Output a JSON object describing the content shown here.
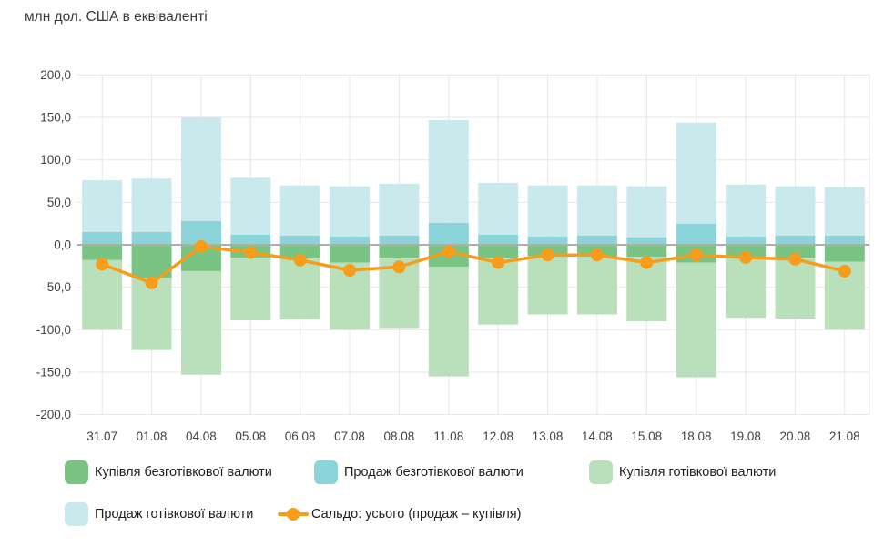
{
  "title": "млн дол. США в еквіваленті",
  "colors": {
    "buy_noncash": "#79c383",
    "sell_noncash": "#8ad4da",
    "buy_cash": "#b9dfbb",
    "sell_cash": "#c9e9ec",
    "saldo": "#f89c1b",
    "grid": "#e6e6e6",
    "zero_line": "#aeaeae",
    "axis_text": "#424242",
    "legend_text": "#1f1f1f"
  },
  "chart_data": {
    "type": "bar",
    "subtype": "stacked-bars-with-line",
    "title": "млн дол. США в еквіваленті",
    "categories": [
      "31.07",
      "01.08",
      "04.08",
      "05.08",
      "06.08",
      "07.08",
      "08.08",
      "11.08",
      "12.08",
      "13.08",
      "14.08",
      "15.08",
      "18.08",
      "19.08",
      "20.08",
      "21.08"
    ],
    "series": [
      {
        "name": "Купівля безготівкової валюти",
        "type": "bar",
        "stack": "down",
        "color_key": "buy_noncash",
        "values": [
          -18,
          -39,
          -31,
          -15,
          -15,
          -21,
          -15,
          -26,
          -15,
          -13,
          -14,
          -14,
          -21,
          -15,
          -15,
          -20
        ]
      },
      {
        "name": "Продаж безготівкової валюти",
        "type": "bar",
        "stack": "up",
        "color_key": "sell_noncash",
        "values": [
          15,
          15,
          28,
          12,
          11,
          10,
          11,
          26,
          12,
          10,
          11,
          9,
          25,
          10,
          11,
          11
        ]
      },
      {
        "name": "Купівля готівкової валюти",
        "type": "bar",
        "stack": "down",
        "color_key": "buy_cash",
        "values": [
          -82,
          -85,
          -122,
          -74,
          -73,
          -79,
          -83,
          -129,
          -79,
          -69,
          -68,
          -76,
          -135,
          -71,
          -72,
          -80
        ]
      },
      {
        "name": "Продаж готівкової валюти",
        "type": "bar",
        "stack": "up",
        "color_key": "sell_cash",
        "values": [
          61,
          63,
          122,
          67,
          59,
          59,
          61,
          121,
          61,
          60,
          59,
          60,
          119,
          61,
          58,
          57
        ]
      },
      {
        "name": "Сальдо: усього (продаж – купівля)",
        "type": "line",
        "color_key": "saldo",
        "values": [
          -23,
          -45,
          -2,
          -9,
          -18,
          -30,
          -26,
          -8,
          -21,
          -12,
          -12,
          -21,
          -12,
          -15,
          -17,
          -31
        ]
      }
    ],
    "ylim": [
      -200,
      200
    ],
    "ytick_step": 50,
    "ytick_labels": [
      "200,0",
      "150,0",
      "100,0",
      "50,0",
      "0,0",
      "-50,0",
      "-100,0",
      "-150,0",
      "-200,0"
    ],
    "grid": true,
    "legend_position": "bottom"
  }
}
